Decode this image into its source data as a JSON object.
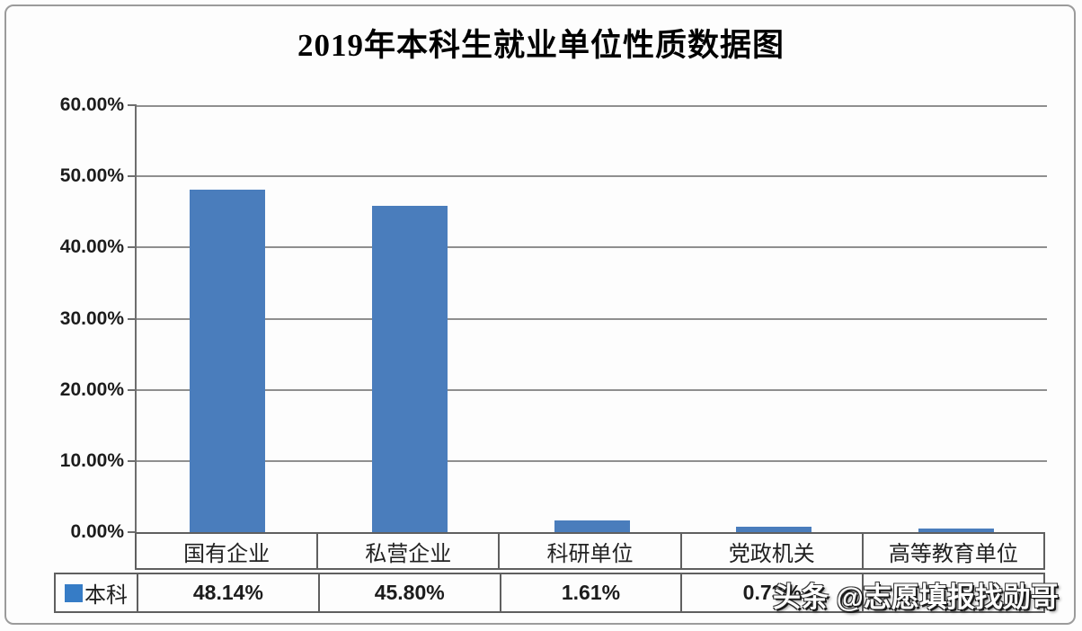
{
  "chart_data": {
    "type": "bar",
    "title": "2019年本科生就业单位性质数据图",
    "categories": [
      "国有企业",
      "私营企业",
      "科研单位",
      "党政机关",
      "高等教育单位"
    ],
    "series": [
      {
        "name": "本科",
        "values": [
          48.14,
          45.8,
          1.61,
          0.73,
          0.5
        ]
      }
    ],
    "value_labels": [
      "48.14%",
      "45.80%",
      "1.61%",
      "0.73%",
      ""
    ],
    "xlabel": "",
    "ylabel": "",
    "ylim": [
      0,
      60
    ],
    "ytick_labels": [
      "60.00%",
      "50.00%",
      "40.00%",
      "30.00%",
      "20.00%",
      "10.00%",
      "0.00%"
    ],
    "grid": true,
    "legend_position": "bottom-left"
  },
  "watermark": {
    "text": "头条 @志愿填报找勋哥"
  },
  "colors": {
    "bar": "#4A7DBC",
    "legend_square": "#367CC6",
    "gridline": "#8f8f8f",
    "table_border": "#5f5f5f",
    "text": "#1a1a1a"
  }
}
